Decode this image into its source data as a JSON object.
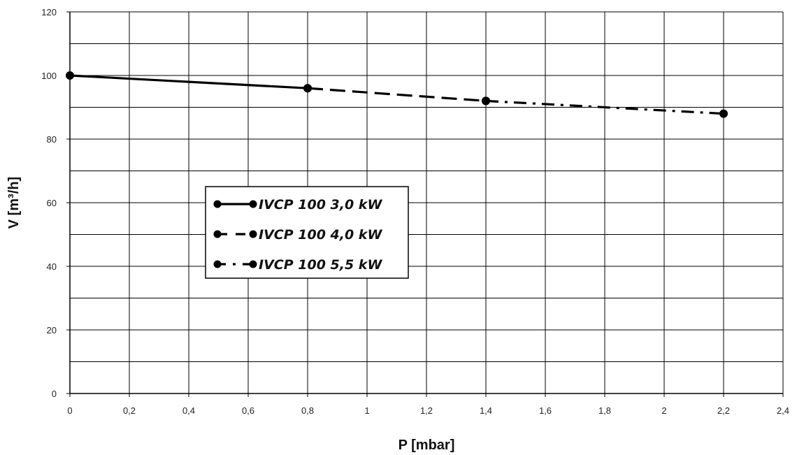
{
  "chart_data": {
    "type": "line",
    "title": "",
    "xlabel": "P [mbar]",
    "ylabel": "V [m³/h]",
    "xlim": [
      0,
      2.4
    ],
    "ylim": [
      0,
      120
    ],
    "x_ticks": [
      0,
      0.2,
      0.4,
      0.6,
      0.8,
      1,
      1.2,
      1.4,
      1.6,
      1.8,
      2,
      2.2,
      2.4
    ],
    "x_tick_labels": [
      "0",
      "0,2",
      "0,4",
      "0,6",
      "0,8",
      "1",
      "1,2",
      "1,4",
      "1,6",
      "1,8",
      "2",
      "2,2",
      "2,4"
    ],
    "y_ticks": [
      0,
      20,
      40,
      60,
      80,
      100,
      120
    ],
    "y_tick_labels": [
      "0",
      "20",
      "40",
      "60",
      "80",
      "100",
      "120"
    ],
    "grid": true,
    "grid_minor_y_step": 10,
    "legend_position": "center-left",
    "series": [
      {
        "name": "IVCP 100 3,0 kW",
        "line_style": "solid",
        "color": "#000000",
        "x": [
          0,
          0.8
        ],
        "y": [
          100,
          96
        ]
      },
      {
        "name": "IVCP 100 4,0 kW",
        "line_style": "dashed",
        "color": "#000000",
        "x": [
          0.8,
          1.4
        ],
        "y": [
          96,
          92
        ]
      },
      {
        "name": "IVCP 100 5,5 kW",
        "line_style": "dash-dot",
        "color": "#000000",
        "x": [
          1.4,
          2.2
        ],
        "y": [
          92,
          88
        ]
      }
    ]
  }
}
